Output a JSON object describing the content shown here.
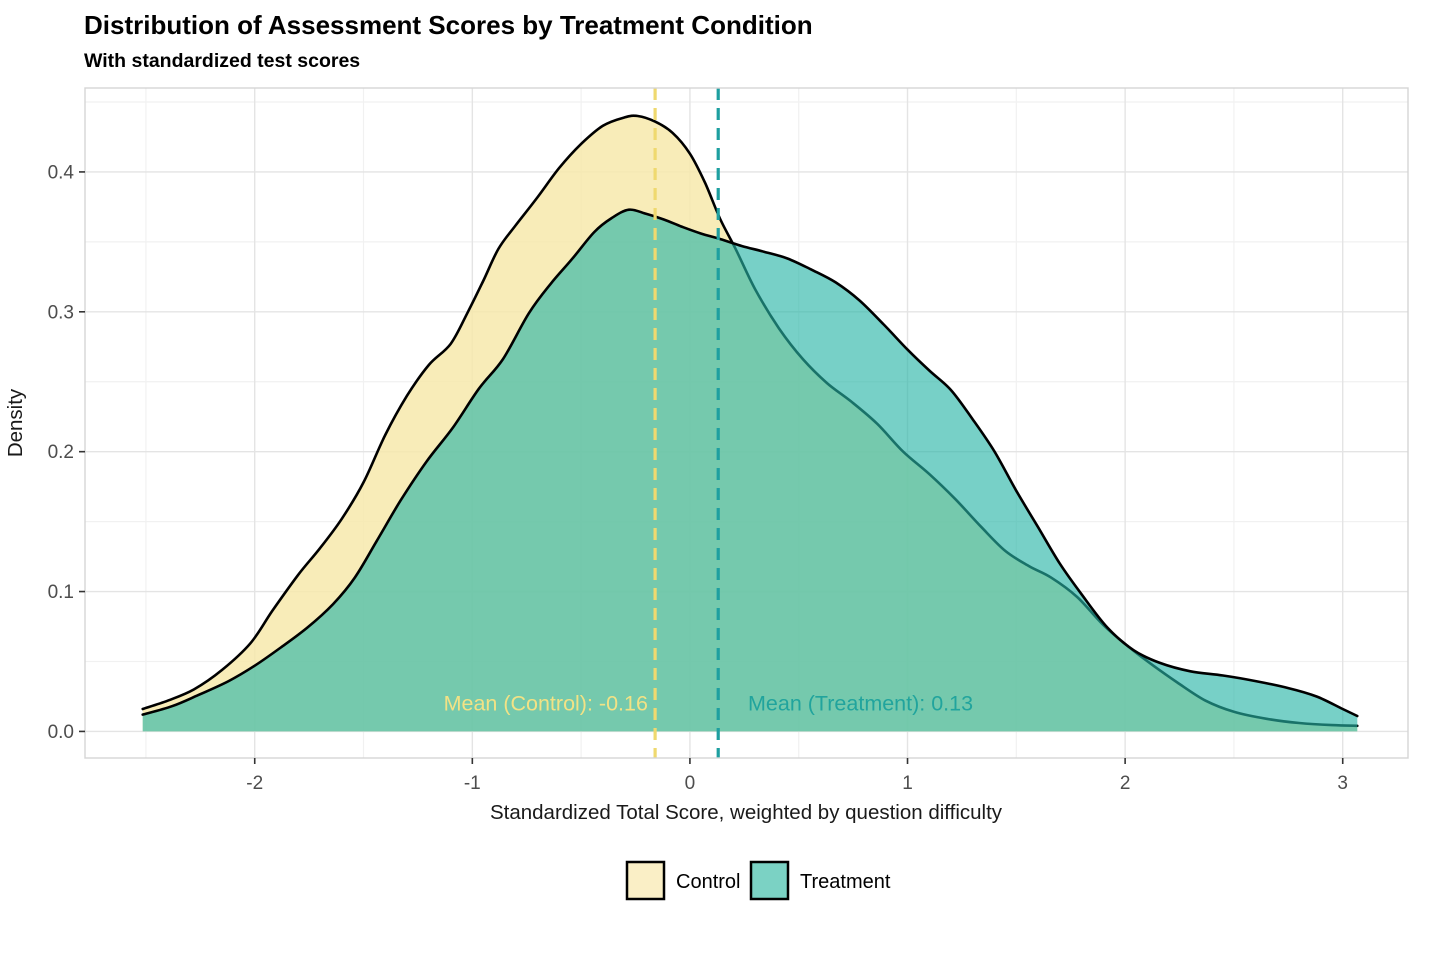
{
  "header": {
    "title": "Distribution of Assessment Scores by Treatment Condition",
    "subtitle": "With standardized test scores"
  },
  "chart_data": {
    "type": "area",
    "title": "Distribution of Assessment Scores by Treatment Condition",
    "subtitle": "With standardized test scores",
    "xlabel": "Standardized Total Score, weighted by question difficulty",
    "ylabel": "Density",
    "xlim": [
      -2.78,
      3.3
    ],
    "ylim": [
      -0.019,
      0.46
    ],
    "x_ticks": [
      -2,
      -1,
      0,
      1,
      2,
      3
    ],
    "x_tick_labels": [
      "-2",
      "-1",
      "0",
      "1",
      "2",
      "3"
    ],
    "x_minor_ticks": [
      -2.5,
      -1.5,
      -0.5,
      0.5,
      1.5,
      2.5
    ],
    "y_ticks": [
      0,
      0.1,
      0.2,
      0.3,
      0.4
    ],
    "y_tick_labels": [
      "0.0",
      "0.1",
      "0.2",
      "0.3",
      "0.4"
    ],
    "y_minor_ticks": [
      0.05,
      0.15,
      0.25,
      0.35,
      0.45
    ],
    "grid": "major+minor",
    "legend_position": "bottom",
    "panel_border_color": "#d5d5d5",
    "major_grid_color": "#e4e4e4",
    "minor_grid_color": "#f1f1f1",
    "tick_mark_color": "#333333",
    "series": [
      {
        "name": "Control",
        "fill": "rgba(247,233,172,0.85)",
        "legend_fill": "#faefc6",
        "stroke": "#000000",
        "mean": -0.16,
        "mean_line_color": "#efd96f",
        "annotation": {
          "text": "Mean (Control): -0.16",
          "color": "#f2e285",
          "align": "right",
          "x": -0.193,
          "y": 0.02
        },
        "points": [
          [
            -2.515,
            0.016
          ],
          [
            -2.4,
            0.022
          ],
          [
            -2.28,
            0.03
          ],
          [
            -2.15,
            0.044
          ],
          [
            -2.02,
            0.063
          ],
          [
            -1.92,
            0.086
          ],
          [
            -1.8,
            0.112
          ],
          [
            -1.7,
            0.131
          ],
          [
            -1.6,
            0.152
          ],
          [
            -1.5,
            0.178
          ],
          [
            -1.4,
            0.212
          ],
          [
            -1.3,
            0.24
          ],
          [
            -1.2,
            0.262
          ],
          [
            -1.1,
            0.277
          ],
          [
            -1.02,
            0.3
          ],
          [
            -0.95,
            0.322
          ],
          [
            -0.88,
            0.345
          ],
          [
            -0.8,
            0.362
          ],
          [
            -0.7,
            0.382
          ],
          [
            -0.6,
            0.403
          ],
          [
            -0.5,
            0.42
          ],
          [
            -0.4,
            0.433
          ],
          [
            -0.3,
            0.439
          ],
          [
            -0.24,
            0.44
          ],
          [
            -0.16,
            0.436
          ],
          [
            -0.08,
            0.428
          ],
          [
            0.0,
            0.413
          ],
          [
            0.07,
            0.392
          ],
          [
            0.14,
            0.366
          ],
          [
            0.21,
            0.345
          ],
          [
            0.3,
            0.316
          ],
          [
            0.41,
            0.288
          ],
          [
            0.52,
            0.266
          ],
          [
            0.63,
            0.249
          ],
          [
            0.74,
            0.236
          ],
          [
            0.86,
            0.22
          ],
          [
            0.98,
            0.2
          ],
          [
            1.1,
            0.184
          ],
          [
            1.22,
            0.166
          ],
          [
            1.34,
            0.146
          ],
          [
            1.45,
            0.129
          ],
          [
            1.56,
            0.118
          ],
          [
            1.66,
            0.11
          ],
          [
            1.78,
            0.096
          ],
          [
            1.9,
            0.076
          ],
          [
            2.02,
            0.06
          ],
          [
            2.13,
            0.047
          ],
          [
            2.24,
            0.035
          ],
          [
            2.37,
            0.022
          ],
          [
            2.5,
            0.014
          ],
          [
            2.65,
            0.009
          ],
          [
            2.8,
            0.006
          ],
          [
            2.95,
            0.0045
          ],
          [
            3.067,
            0.004
          ]
        ]
      },
      {
        "name": "Treatment",
        "fill": "rgba(40,180,166,0.63)",
        "legend_fill": "#7bd2c4",
        "stroke": "#000000",
        "mean": 0.13,
        "mean_line_color": "#1e9fa0",
        "annotation": {
          "text": "Mean (Treatment): 0.13",
          "color": "#21a49d",
          "align": "left",
          "x": 0.267,
          "y": 0.02
        },
        "points": [
          [
            -2.515,
            0.012
          ],
          [
            -2.38,
            0.018
          ],
          [
            -2.26,
            0.026
          ],
          [
            -2.12,
            0.036
          ],
          [
            -2.0,
            0.047
          ],
          [
            -1.88,
            0.06
          ],
          [
            -1.76,
            0.074
          ],
          [
            -1.64,
            0.091
          ],
          [
            -1.54,
            0.11
          ],
          [
            -1.44,
            0.136
          ],
          [
            -1.33,
            0.165
          ],
          [
            -1.21,
            0.193
          ],
          [
            -1.09,
            0.217
          ],
          [
            -0.97,
            0.245
          ],
          [
            -0.86,
            0.266
          ],
          [
            -0.74,
            0.299
          ],
          [
            -0.64,
            0.32
          ],
          [
            -0.54,
            0.338
          ],
          [
            -0.44,
            0.357
          ],
          [
            -0.36,
            0.367
          ],
          [
            -0.28,
            0.373
          ],
          [
            -0.2,
            0.37
          ],
          [
            -0.12,
            0.366
          ],
          [
            -0.04,
            0.361
          ],
          [
            0.05,
            0.356
          ],
          [
            0.14,
            0.352
          ],
          [
            0.24,
            0.347
          ],
          [
            0.34,
            0.343
          ],
          [
            0.45,
            0.338
          ],
          [
            0.56,
            0.33
          ],
          [
            0.67,
            0.321
          ],
          [
            0.78,
            0.308
          ],
          [
            0.89,
            0.291
          ],
          [
            1.0,
            0.273
          ],
          [
            1.1,
            0.258
          ],
          [
            1.2,
            0.244
          ],
          [
            1.3,
            0.223
          ],
          [
            1.4,
            0.2
          ],
          [
            1.5,
            0.172
          ],
          [
            1.6,
            0.146
          ],
          [
            1.7,
            0.12
          ],
          [
            1.8,
            0.098
          ],
          [
            1.92,
            0.074
          ],
          [
            2.04,
            0.058
          ],
          [
            2.16,
            0.049
          ],
          [
            2.3,
            0.043
          ],
          [
            2.45,
            0.04
          ],
          [
            2.6,
            0.036
          ],
          [
            2.75,
            0.031
          ],
          [
            2.88,
            0.025
          ],
          [
            3.0,
            0.016
          ],
          [
            3.067,
            0.011
          ]
        ]
      }
    ],
    "legend": [
      "Control",
      "Treatment"
    ]
  }
}
